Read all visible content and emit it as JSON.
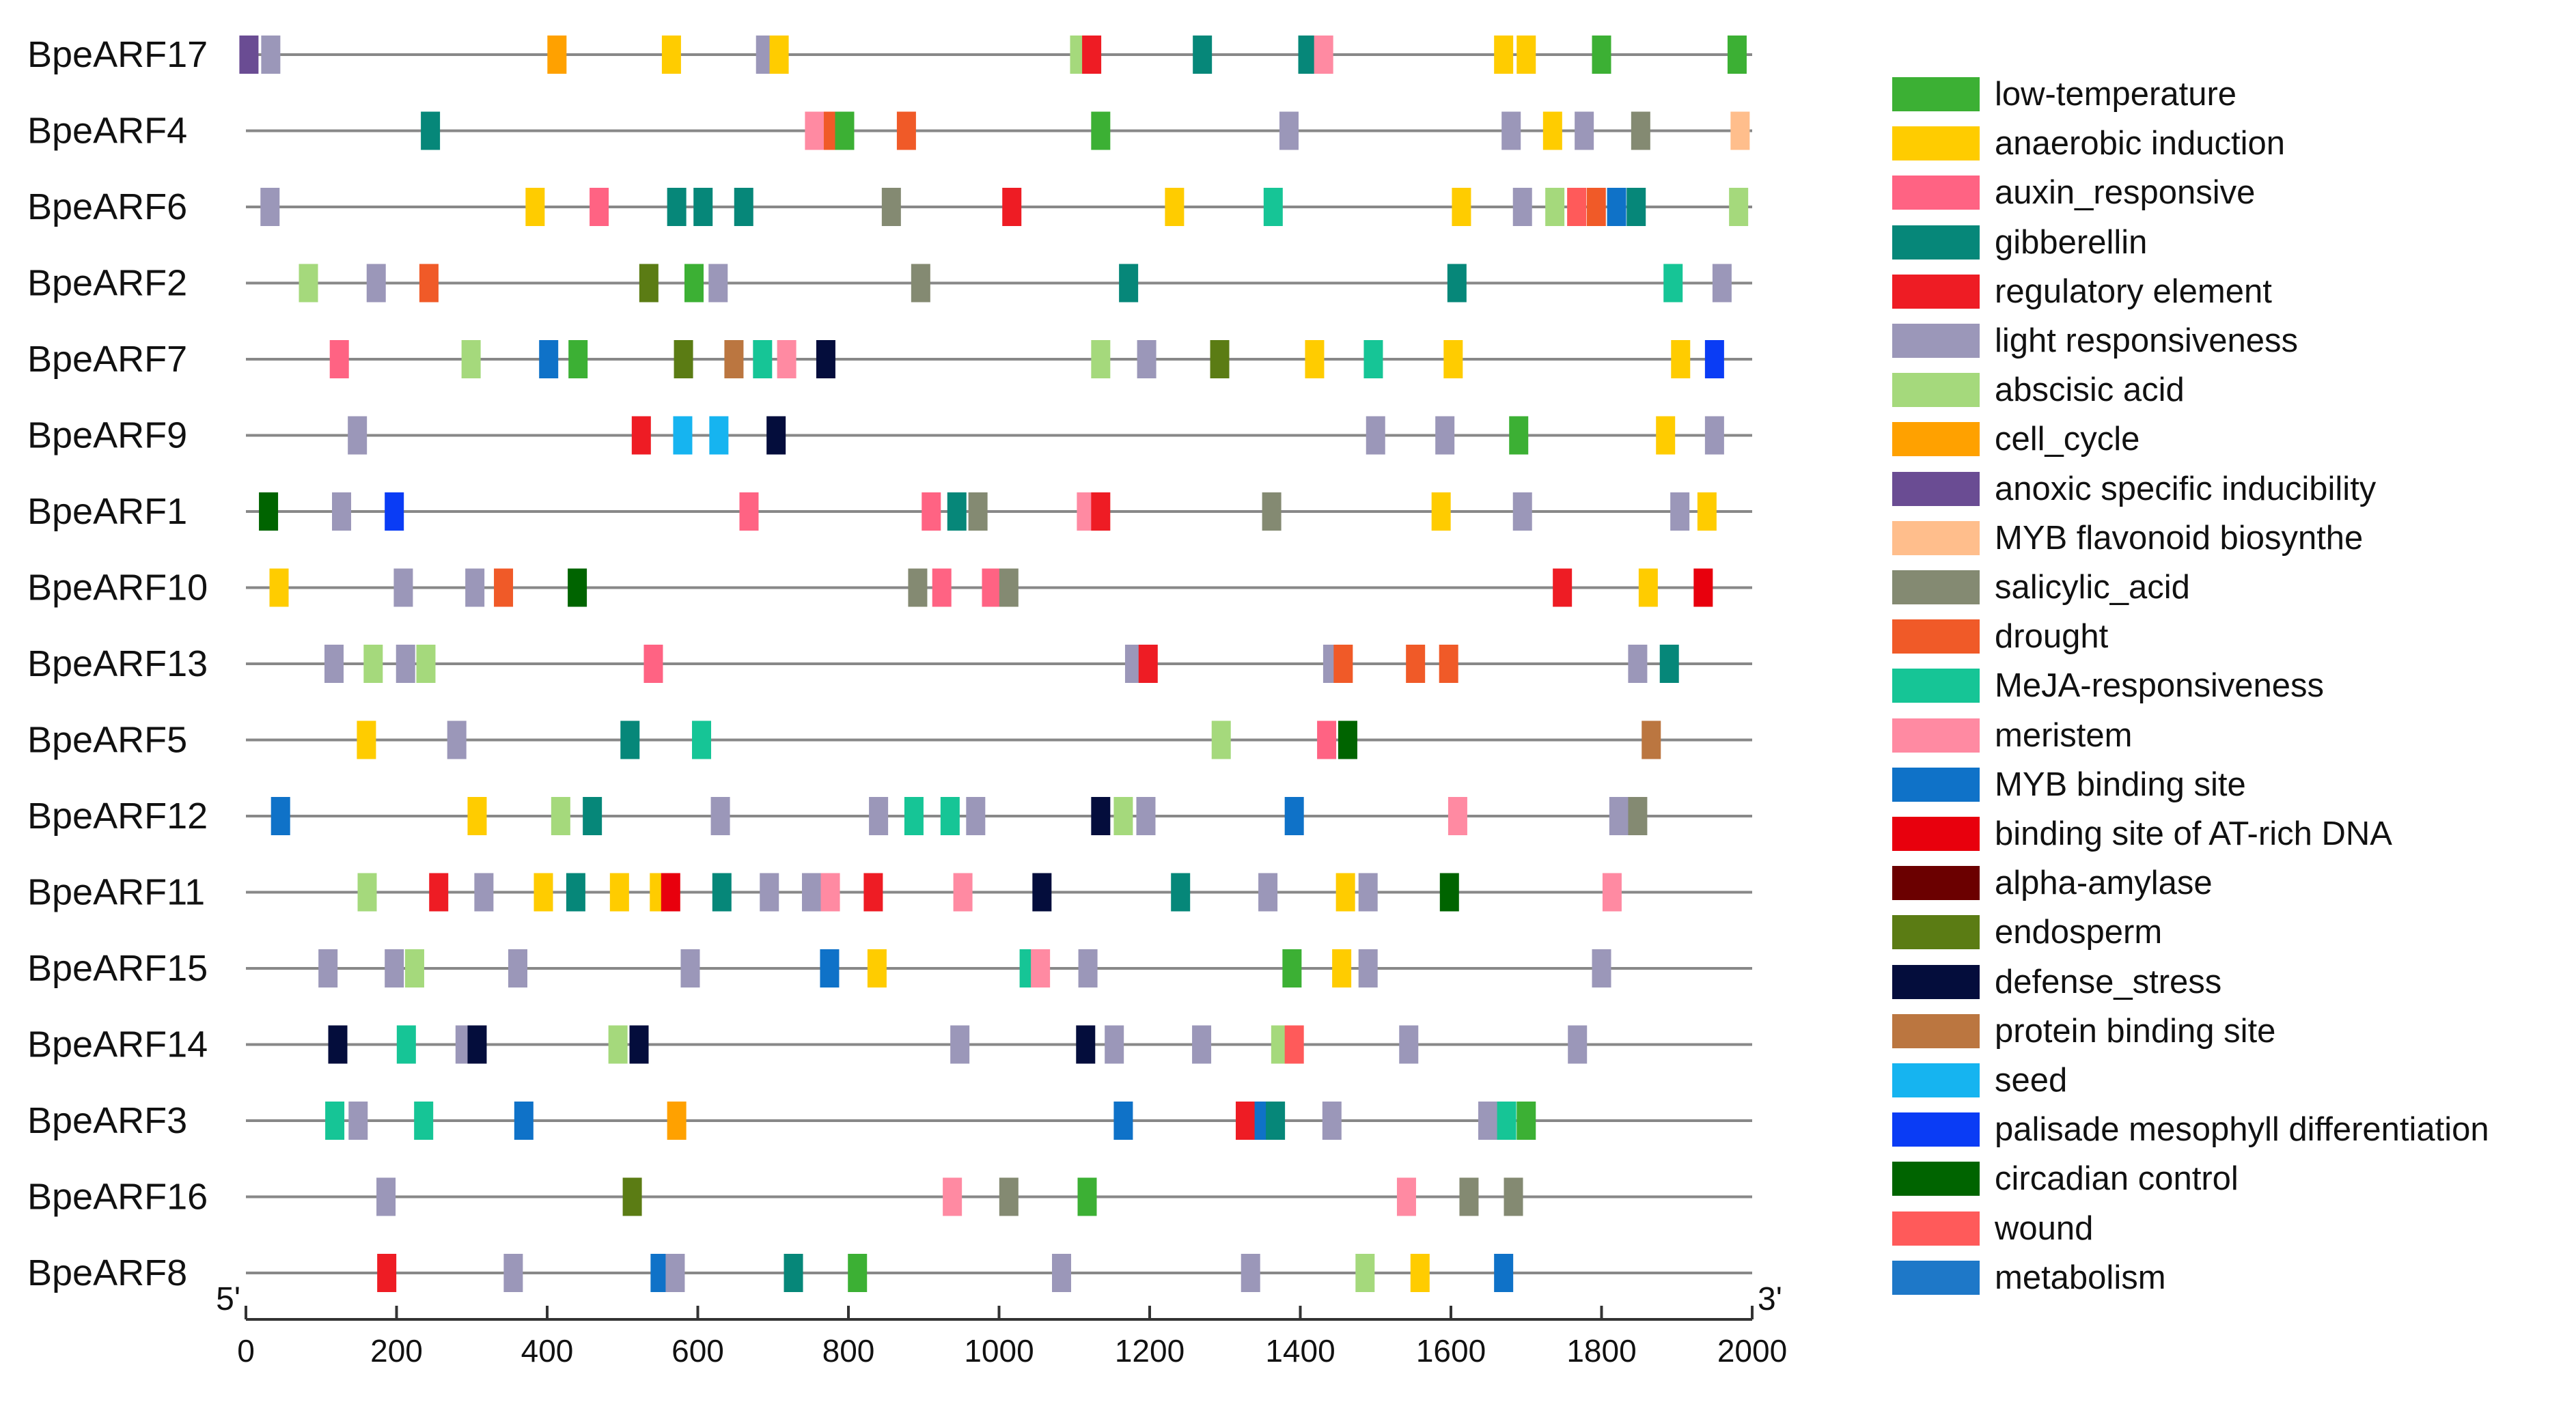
{
  "chart_data": {
    "type": "motif-map",
    "xlabel_left": "5'",
    "xlabel_right": "3'",
    "xlim": [
      0,
      2000
    ],
    "xticks": [
      0,
      200,
      400,
      600,
      800,
      1000,
      1200,
      1400,
      1600,
      1800,
      2000
    ],
    "categories": {
      "low-temperature": {
        "label": "low-temperature",
        "color": "#3cb034"
      },
      "anaerobic": {
        "label": "anaerobic induction",
        "color": "#ffcc00"
      },
      "auxin": {
        "label": "auxin_responsive",
        "color": "#ff6383"
      },
      "gibberellin": {
        "label": "gibberellin",
        "color": "#068779"
      },
      "regulatory": {
        "label": "regulatory element",
        "color": "#ee1c24"
      },
      "light": {
        "label": "light responsiveness",
        "color": "#9b97b9"
      },
      "abscisic": {
        "label": "abscisic acid",
        "color": "#a5d97c"
      },
      "cell_cycle": {
        "label": "cell_cycle",
        "color": "#ffa100"
      },
      "anoxic": {
        "label": "anoxic specific inducibility",
        "color": "#6a4c93"
      },
      "myb_flav": {
        "label": "MYB flavonoid biosynthe",
        "color": "#ffbe8c"
      },
      "salicylic": {
        "label": "salicylic_acid",
        "color": "#848a72"
      },
      "drought": {
        "label": "drought",
        "color": "#f05a28"
      },
      "meja": {
        "label": "MeJA-responsiveness",
        "color": "#16c596"
      },
      "meristem": {
        "label": "meristem",
        "color": "#ff8aa2"
      },
      "myb_binding": {
        "label": "MYB binding site",
        "color": "#0f72c8"
      },
      "at_rich": {
        "label": "binding site of AT-rich DNA",
        "color": "#e8000d"
      },
      "alpha_amylase": {
        "label": "alpha-amylase",
        "color": "#6b0000"
      },
      "endosperm": {
        "label": "endosperm",
        "color": "#5b7c14"
      },
      "defense": {
        "label": "defense_stress",
        "color": "#040d3c"
      },
      "protein_binding": {
        "label": "protein binding site",
        "color": "#bb7640"
      },
      "seed": {
        "label": "seed",
        "color": "#16b4f0"
      },
      "palisade": {
        "label": "palisade mesophyll differentiation",
        "color": "#0a3cf5"
      },
      "circadian": {
        "label": "circadian control",
        "color": "#006400"
      },
      "wound": {
        "label": "wound",
        "color": "#ff5a5a"
      },
      "metabolism": {
        "label": "metabolism",
        "color": "#1e78c8"
      }
    },
    "legend_order": [
      "low-temperature",
      "anaerobic",
      "auxin",
      "gibberellin",
      "regulatory",
      "light",
      "abscisic",
      "cell_cycle",
      "anoxic",
      "myb_flav",
      "salicylic",
      "drought",
      "meja",
      "meristem",
      "myb_binding",
      "at_rich",
      "alpha_amylase",
      "endosperm",
      "defense",
      "protein_binding",
      "seed",
      "palisade",
      "circadian",
      "wound",
      "metabolism"
    ],
    "genes": [
      {
        "name": "BpeARF17",
        "motifs": [
          [
            4,
            "anoxic"
          ],
          [
            33,
            "light"
          ],
          [
            413,
            "cell_cycle"
          ],
          [
            565,
            "anaerobic"
          ],
          [
            690,
            "light"
          ],
          [
            708,
            "anaerobic"
          ],
          [
            1107,
            "abscisic"
          ],
          [
            1123,
            "regulatory"
          ],
          [
            1270,
            "gibberellin"
          ],
          [
            1410,
            "gibberellin"
          ],
          [
            1431,
            "meristem"
          ],
          [
            1670,
            "anaerobic"
          ],
          [
            1700,
            "anaerobic"
          ],
          [
            1800,
            "low-temperature"
          ],
          [
            1980,
            "low-temperature"
          ]
        ]
      },
      {
        "name": "BpeARF4",
        "motifs": [
          [
            245,
            "gibberellin"
          ],
          [
            755,
            "meristem"
          ],
          [
            780,
            "drought"
          ],
          [
            795,
            "low-temperature"
          ],
          [
            877,
            "drought"
          ],
          [
            1135,
            "low-temperature"
          ],
          [
            1385,
            "light"
          ],
          [
            1680,
            "light"
          ],
          [
            1735,
            "anaerobic"
          ],
          [
            1777,
            "light"
          ],
          [
            1852,
            "salicylic"
          ],
          [
            1984,
            "myb_flav"
          ]
        ]
      },
      {
        "name": "BpeARF6",
        "motifs": [
          [
            32,
            "light"
          ],
          [
            384,
            "anaerobic"
          ],
          [
            469,
            "auxin"
          ],
          [
            572,
            "gibberellin"
          ],
          [
            607,
            "gibberellin"
          ],
          [
            661,
            "gibberellin"
          ],
          [
            857,
            "salicylic"
          ],
          [
            1017,
            "regulatory"
          ],
          [
            1233,
            "anaerobic"
          ],
          [
            1364,
            "meja"
          ],
          [
            1614,
            "anaerobic"
          ],
          [
            1695,
            "light"
          ],
          [
            1738,
            "abscisic"
          ],
          [
            1767,
            "wound"
          ],
          [
            1793,
            "drought"
          ],
          [
            1820,
            "myb_binding"
          ],
          [
            1846,
            "gibberellin"
          ],
          [
            1982,
            "abscisic"
          ]
        ]
      },
      {
        "name": "BpeARF2",
        "motifs": [
          [
            83,
            "abscisic"
          ],
          [
            173,
            "light"
          ],
          [
            243,
            "drought"
          ],
          [
            535,
            "endosperm"
          ],
          [
            595,
            "low-temperature"
          ],
          [
            627,
            "light"
          ],
          [
            896,
            "salicylic"
          ],
          [
            1172,
            "gibberellin"
          ],
          [
            1608,
            "gibberellin"
          ],
          [
            1895,
            "meja"
          ],
          [
            1960,
            "light"
          ]
        ]
      },
      {
        "name": "BpeARF7",
        "motifs": [
          [
            124,
            "auxin"
          ],
          [
            299,
            "abscisic"
          ],
          [
            402,
            "myb_binding"
          ],
          [
            441,
            "low-temperature"
          ],
          [
            581,
            "endosperm"
          ],
          [
            648,
            "protein_binding"
          ],
          [
            686,
            "meja"
          ],
          [
            718,
            "meristem"
          ],
          [
            770,
            "defense"
          ],
          [
            1135,
            "abscisic"
          ],
          [
            1196,
            "light"
          ],
          [
            1293,
            "endosperm"
          ],
          [
            1419,
            "anaerobic"
          ],
          [
            1497,
            "meja"
          ],
          [
            1603,
            "anaerobic"
          ],
          [
            1905,
            "anaerobic"
          ],
          [
            1950,
            "palisade"
          ]
        ]
      },
      {
        "name": "BpeARF9",
        "motifs": [
          [
            148,
            "light"
          ],
          [
            525,
            "regulatory"
          ],
          [
            580,
            "seed"
          ],
          [
            628,
            "seed"
          ],
          [
            704,
            "defense"
          ],
          [
            1500,
            "light"
          ],
          [
            1592,
            "light"
          ],
          [
            1690,
            "low-temperature"
          ],
          [
            1885,
            "anaerobic"
          ],
          [
            1950,
            "light"
          ]
        ]
      },
      {
        "name": "BpeARF1",
        "motifs": [
          [
            30,
            "circadian"
          ],
          [
            127,
            "light"
          ],
          [
            197,
            "palisade"
          ],
          [
            668,
            "auxin"
          ],
          [
            910,
            "auxin"
          ],
          [
            944,
            "gibberellin"
          ],
          [
            972,
            "salicylic"
          ],
          [
            1116,
            "meristem"
          ],
          [
            1135,
            "regulatory"
          ],
          [
            1362,
            "salicylic"
          ],
          [
            1587,
            "anaerobic"
          ],
          [
            1695,
            "light"
          ],
          [
            1904,
            "light"
          ],
          [
            1940,
            "anaerobic"
          ]
        ]
      },
      {
        "name": "BpeARF10",
        "motifs": [
          [
            44,
            "anaerobic"
          ],
          [
            209,
            "light"
          ],
          [
            304,
            "light"
          ],
          [
            342,
            "drought"
          ],
          [
            440,
            "circadian"
          ],
          [
            892,
            "salicylic"
          ],
          [
            924,
            "auxin"
          ],
          [
            990,
            "auxin"
          ],
          [
            1013,
            "salicylic"
          ],
          [
            1748,
            "regulatory"
          ],
          [
            1862,
            "anaerobic"
          ],
          [
            1935,
            "at_rich"
          ]
        ]
      },
      {
        "name": "BpeARF13",
        "motifs": [
          [
            117,
            "light"
          ],
          [
            169,
            "abscisic"
          ],
          [
            212,
            "light"
          ],
          [
            239,
            "abscisic"
          ],
          [
            541,
            "auxin"
          ],
          [
            1180,
            "light"
          ],
          [
            1198,
            "regulatory"
          ],
          [
            1443,
            "light"
          ],
          [
            1457,
            "drought"
          ],
          [
            1553,
            "drought"
          ],
          [
            1597,
            "drought"
          ],
          [
            1848,
            "light"
          ],
          [
            1890,
            "gibberellin"
          ]
        ]
      },
      {
        "name": "BpeARF5",
        "motifs": [
          [
            160,
            "anaerobic"
          ],
          [
            280,
            "light"
          ],
          [
            510,
            "gibberellin"
          ],
          [
            605,
            "meja"
          ],
          [
            1295,
            "abscisic"
          ],
          [
            1435,
            "auxin"
          ],
          [
            1463,
            "circadian"
          ],
          [
            1866,
            "protein_binding"
          ]
        ]
      },
      {
        "name": "BpeARF12",
        "motifs": [
          [
            46,
            "myb_binding"
          ],
          [
            307,
            "anaerobic"
          ],
          [
            418,
            "abscisic"
          ],
          [
            460,
            "gibberellin"
          ],
          [
            630,
            "light"
          ],
          [
            840,
            "light"
          ],
          [
            887,
            "meja"
          ],
          [
            935,
            "meja"
          ],
          [
            969,
            "light"
          ],
          [
            1135,
            "defense"
          ],
          [
            1165,
            "abscisic"
          ],
          [
            1195,
            "light"
          ],
          [
            1392,
            "myb_binding"
          ],
          [
            1609,
            "meristem"
          ],
          [
            1823,
            "light"
          ],
          [
            1848,
            "salicylic"
          ]
        ]
      },
      {
        "name": "BpeARF11",
        "motifs": [
          [
            161,
            "abscisic"
          ],
          [
            256,
            "regulatory"
          ],
          [
            316,
            "light"
          ],
          [
            395,
            "anaerobic"
          ],
          [
            438,
            "gibberellin"
          ],
          [
            496,
            "anaerobic"
          ],
          [
            549,
            "anaerobic"
          ],
          [
            564,
            "at_rich"
          ],
          [
            632,
            "gibberellin"
          ],
          [
            695,
            "light"
          ],
          [
            751,
            "light"
          ],
          [
            776,
            "meristem"
          ],
          [
            833,
            "regulatory"
          ],
          [
            952,
            "meristem"
          ],
          [
            1057,
            "defense"
          ],
          [
            1241,
            "gibberellin"
          ],
          [
            1357,
            "light"
          ],
          [
            1460,
            "anaerobic"
          ],
          [
            1490,
            "light"
          ],
          [
            1598,
            "circadian"
          ],
          [
            1814,
            "meristem"
          ]
        ]
      },
      {
        "name": "BpeARF15",
        "motifs": [
          [
            109,
            "light"
          ],
          [
            197,
            "light"
          ],
          [
            224,
            "abscisic"
          ],
          [
            361,
            "light"
          ],
          [
            590,
            "light"
          ],
          [
            775,
            "myb_binding"
          ],
          [
            838,
            "anaerobic"
          ],
          [
            1040,
            "meja"
          ],
          [
            1055,
            "meristem"
          ],
          [
            1118,
            "light"
          ],
          [
            1389,
            "low-temperature"
          ],
          [
            1455,
            "anaerobic"
          ],
          [
            1490,
            "light"
          ],
          [
            1800,
            "light"
          ]
        ]
      },
      {
        "name": "BpeARF14",
        "motifs": [
          [
            122,
            "defense"
          ],
          [
            213,
            "meja"
          ],
          [
            291,
            "light"
          ],
          [
            307,
            "defense"
          ],
          [
            494,
            "abscisic"
          ],
          [
            522,
            "defense"
          ],
          [
            948,
            "light"
          ],
          [
            1115,
            "defense"
          ],
          [
            1153,
            "light"
          ],
          [
            1269,
            "light"
          ],
          [
            1374,
            "abscisic"
          ],
          [
            1392,
            "wound"
          ],
          [
            1544,
            "light"
          ],
          [
            1768,
            "light"
          ]
        ]
      },
      {
        "name": "BpeARF3",
        "motifs": [
          [
            118,
            "meja"
          ],
          [
            149,
            "light"
          ],
          [
            236,
            "meja"
          ],
          [
            369,
            "myb_binding"
          ],
          [
            572,
            "cell_cycle"
          ],
          [
            1165,
            "myb_binding"
          ],
          [
            1327,
            "regulatory"
          ],
          [
            1352,
            "myb_binding"
          ],
          [
            1367,
            "gibberellin"
          ],
          [
            1442,
            "light"
          ],
          [
            1649,
            "light"
          ],
          [
            1674,
            "meja"
          ],
          [
            1700,
            "low-temperature"
          ]
        ]
      },
      {
        "name": "BpeARF16",
        "motifs": [
          [
            186,
            "light"
          ],
          [
            513,
            "endosperm"
          ],
          [
            938,
            "meristem"
          ],
          [
            1013,
            "salicylic"
          ],
          [
            1117,
            "low-temperature"
          ],
          [
            1541,
            "meristem"
          ],
          [
            1624,
            "salicylic"
          ],
          [
            1683,
            "salicylic"
          ]
        ]
      },
      {
        "name": "BpeARF8",
        "motifs": [
          [
            187,
            "regulatory"
          ],
          [
            355,
            "light"
          ],
          [
            550,
            "myb_binding"
          ],
          [
            570,
            "light"
          ],
          [
            727,
            "gibberellin"
          ],
          [
            812,
            "low-temperature"
          ],
          [
            1083,
            "light"
          ],
          [
            1334,
            "light"
          ],
          [
            1486,
            "abscisic"
          ],
          [
            1559,
            "anaerobic"
          ],
          [
            1670,
            "myb_binding"
          ]
        ]
      }
    ]
  }
}
